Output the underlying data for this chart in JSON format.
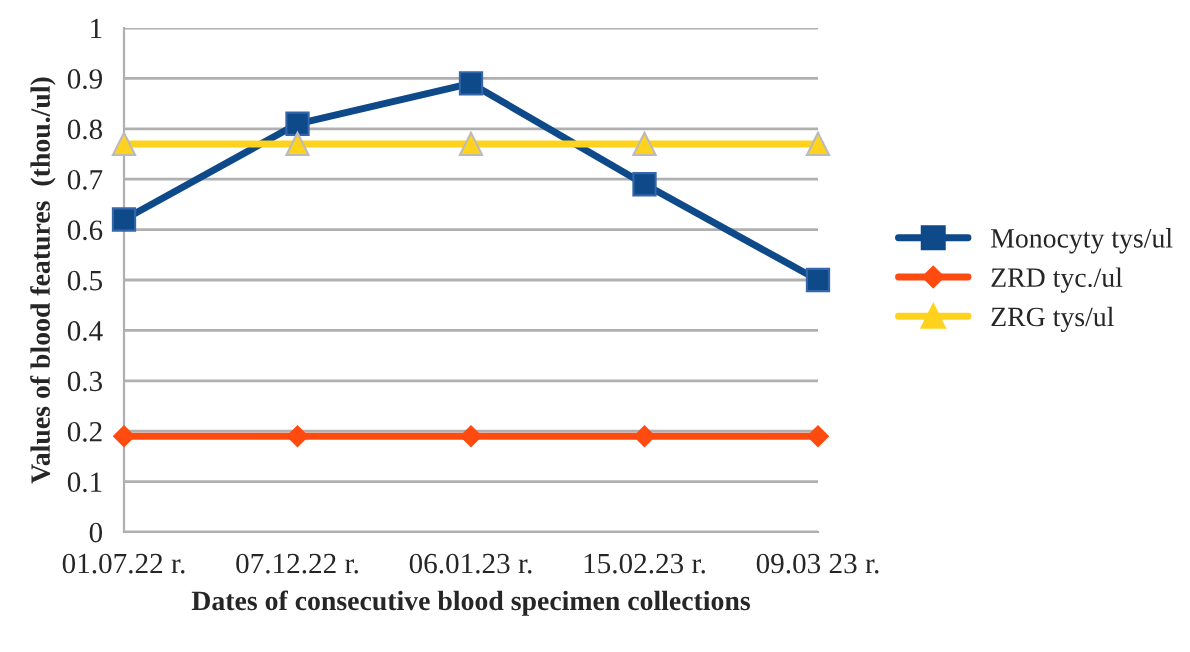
{
  "chart_data": {
    "type": "line",
    "xlabel": "Dates of consecutive blood specimen collections",
    "ylabel": "Values of blood features  (thou./ul)",
    "categories": [
      "01.07.22 r.",
      "07.12.22 r.",
      "06.01.23 r.",
      "15.02.23 r.",
      "09.03 23 r."
    ],
    "series": [
      {
        "name": "Monocyty tys/ul",
        "color": "#0e4a8a",
        "marker": "square",
        "values": [
          0.62,
          0.81,
          0.89,
          0.69,
          0.5
        ]
      },
      {
        "name": "ZRD tyc./ul",
        "color": "#ff4a10",
        "marker": "diamond",
        "values": [
          0.19,
          0.19,
          0.19,
          0.19,
          0.19
        ]
      },
      {
        "name": "ZRG tys/ul",
        "color": "#ffd21e",
        "marker": "triangle",
        "values": [
          0.77,
          0.77,
          0.77,
          0.77,
          0.77
        ]
      }
    ],
    "ylim": [
      0,
      1
    ],
    "yticks": [
      0,
      0.1,
      0.2,
      0.3,
      0.4,
      0.5,
      0.6,
      0.7,
      0.8,
      0.9,
      1
    ],
    "grid": "y",
    "legend": "right",
    "line_style": "solid"
  }
}
